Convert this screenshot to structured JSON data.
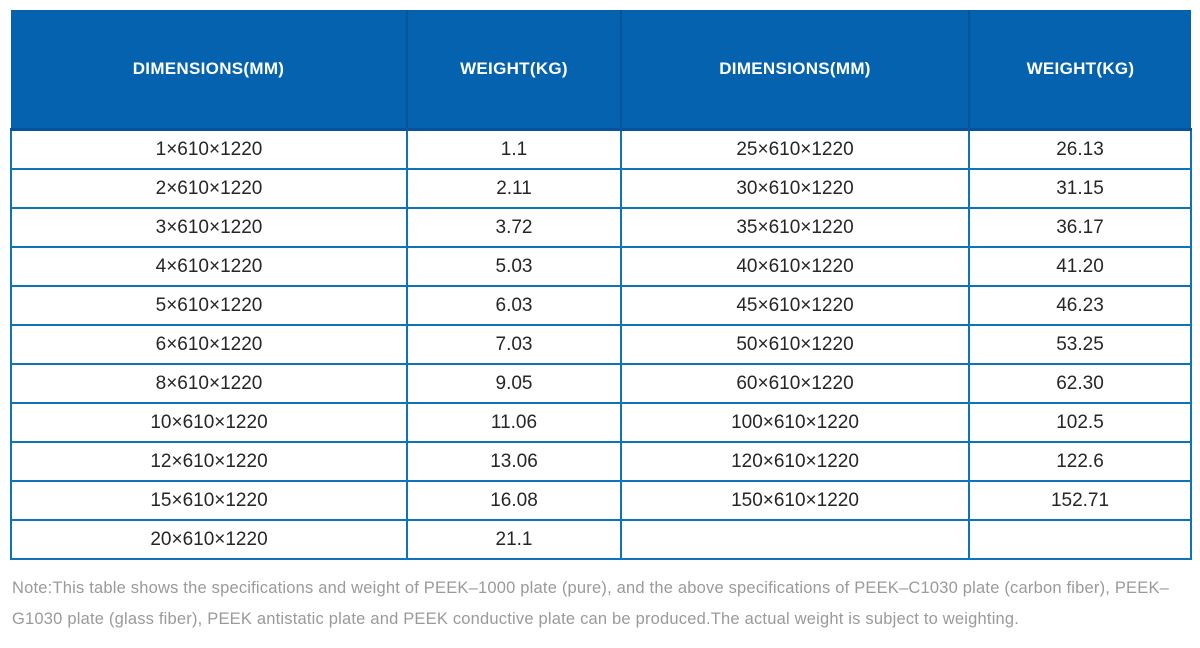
{
  "colors": {
    "header_bg": "#0562ae",
    "header_divider": "#05539b",
    "body_border": "#0e74b8",
    "body_text": "#262626",
    "note_text": "#9a9a9a"
  },
  "table": {
    "headers": [
      "DIMENSIONS(MM)",
      "WEIGHT(KG)",
      "DIMENSIONS(MM)",
      "WEIGHT(KG)"
    ],
    "rows": [
      [
        "1×610×1220",
        "1.1",
        "25×610×1220",
        "26.13"
      ],
      [
        "2×610×1220",
        "2.11",
        "30×610×1220",
        "31.15"
      ],
      [
        "3×610×1220",
        "3.72",
        "35×610×1220",
        "36.17"
      ],
      [
        "4×610×1220",
        "5.03",
        "40×610×1220",
        "41.20"
      ],
      [
        "5×610×1220",
        "6.03",
        "45×610×1220",
        "46.23"
      ],
      [
        "6×610×1220",
        "7.03",
        "50×610×1220",
        "53.25"
      ],
      [
        "8×610×1220",
        "9.05",
        "60×610×1220",
        "62.30"
      ],
      [
        "10×610×1220",
        "11.06",
        "100×610×1220",
        "102.5"
      ],
      [
        "12×610×1220",
        "13.06",
        "120×610×1220",
        "122.6"
      ],
      [
        "15×610×1220",
        "16.08",
        "150×610×1220",
        "152.71"
      ],
      [
        "20×610×1220",
        "21.1",
        "",
        ""
      ]
    ]
  },
  "note": {
    "text": "Note:This table shows the specifications and weight of PEEK–1000 plate (pure), and the above specifications of PEEK–C1030 plate (carbon fiber), PEEK–G1030 plate (glass fiber), PEEK antistatic plate and PEEK conductive plate can be produced.The actual weight is subject to weighting."
  }
}
